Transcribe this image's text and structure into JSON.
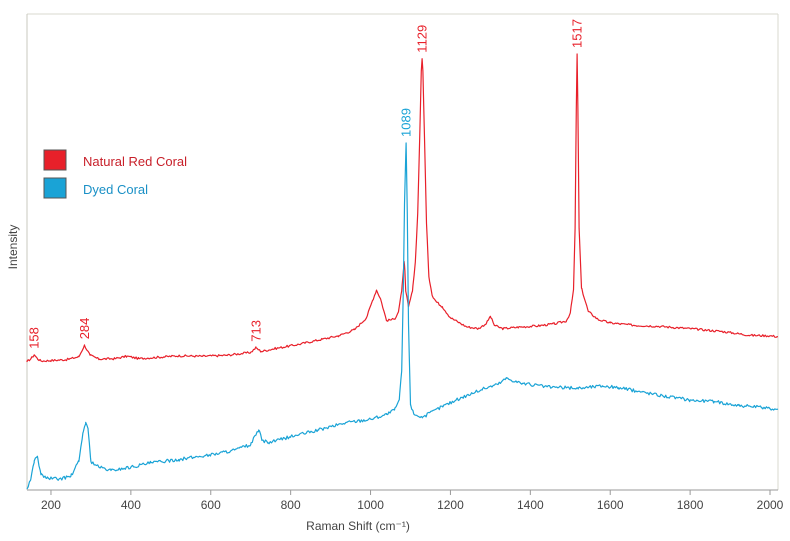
{
  "chart_data": {
    "type": "line",
    "xlabel": "Raman Shift (cm⁻¹)",
    "ylabel": "Intensity",
    "xlim": [
      140,
      2020
    ],
    "ylim": [
      0,
      100
    ],
    "x_ticks": [
      200,
      400,
      600,
      800,
      1000,
      1200,
      1400,
      1600,
      1800,
      2000
    ],
    "grid": false,
    "y_tick_labels": false,
    "legend": "left",
    "series": [
      {
        "name": "Natural Red Coral",
        "color": "#e8202a",
        "points": [
          [
            140,
            27.0
          ],
          [
            150,
            27.6
          ],
          [
            158,
            28.4
          ],
          [
            166,
            27.6
          ],
          [
            175,
            27.1
          ],
          [
            200,
            27.2
          ],
          [
            240,
            27.4
          ],
          [
            270,
            28.0
          ],
          [
            284,
            30.4
          ],
          [
            298,
            28.3
          ],
          [
            320,
            27.5
          ],
          [
            360,
            27.6
          ],
          [
            390,
            28.1
          ],
          [
            420,
            27.6
          ],
          [
            470,
            27.9
          ],
          [
            520,
            28.2
          ],
          [
            580,
            28.1
          ],
          [
            640,
            28.3
          ],
          [
            700,
            28.9
          ],
          [
            713,
            29.9
          ],
          [
            726,
            29.1
          ],
          [
            760,
            29.7
          ],
          [
            820,
            30.6
          ],
          [
            880,
            31.7
          ],
          [
            920,
            32.4
          ],
          [
            960,
            33.7
          ],
          [
            990,
            36.2
          ],
          [
            1005,
            39.8
          ],
          [
            1015,
            42.0
          ],
          [
            1025,
            40.2
          ],
          [
            1040,
            35.6
          ],
          [
            1060,
            35.9
          ],
          [
            1070,
            37.5
          ],
          [
            1078,
            41.8
          ],
          [
            1084,
            48.0
          ],
          [
            1086,
            46.0
          ],
          [
            1088,
            41.8
          ],
          [
            1095,
            38.5
          ],
          [
            1105,
            41.8
          ],
          [
            1112,
            47.8
          ],
          [
            1118,
            58.0
          ],
          [
            1123,
            74.0
          ],
          [
            1127,
            88.0
          ],
          [
            1129,
            90.6
          ],
          [
            1131,
            88.0
          ],
          [
            1135,
            74.0
          ],
          [
            1140,
            56.0
          ],
          [
            1146,
            44.8
          ],
          [
            1155,
            40.7
          ],
          [
            1165,
            39.5
          ],
          [
            1180,
            38.5
          ],
          [
            1200,
            36.2
          ],
          [
            1240,
            34.3
          ],
          [
            1270,
            33.9
          ],
          [
            1290,
            35.0
          ],
          [
            1300,
            36.5
          ],
          [
            1310,
            34.6
          ],
          [
            1330,
            33.9
          ],
          [
            1370,
            34.2
          ],
          [
            1420,
            34.5
          ],
          [
            1460,
            34.9
          ],
          [
            1490,
            35.5
          ],
          [
            1500,
            37.2
          ],
          [
            1508,
            42.0
          ],
          [
            1512,
            55.0
          ],
          [
            1515,
            80.0
          ],
          [
            1517,
            91.6
          ],
          [
            1519,
            80.0
          ],
          [
            1522,
            55.0
          ],
          [
            1528,
            42.4
          ],
          [
            1545,
            37.5
          ],
          [
            1570,
            35.8
          ],
          [
            1600,
            35.1
          ],
          [
            1660,
            34.6
          ],
          [
            1720,
            34.4
          ],
          [
            1800,
            33.9
          ],
          [
            1880,
            33.3
          ],
          [
            1950,
            32.5
          ],
          [
            2000,
            32.4
          ],
          [
            2020,
            32.2
          ]
        ]
      },
      {
        "name": "Dyed Coral",
        "color": "#1aa3d6",
        "points": [
          [
            140,
            0.2
          ],
          [
            150,
            2.5
          ],
          [
            158,
            6.1
          ],
          [
            166,
            7.1
          ],
          [
            175,
            3.2
          ],
          [
            190,
            2.5
          ],
          [
            220,
            2.3
          ],
          [
            250,
            2.9
          ],
          [
            270,
            6.0
          ],
          [
            280,
            12.0
          ],
          [
            287,
            14.2
          ],
          [
            293,
            12.6
          ],
          [
            300,
            6.0
          ],
          [
            320,
            4.8
          ],
          [
            350,
            4.1
          ],
          [
            400,
            4.8
          ],
          [
            450,
            5.7
          ],
          [
            520,
            6.4
          ],
          [
            600,
            7.4
          ],
          [
            660,
            8.4
          ],
          [
            700,
            9.5
          ],
          [
            712,
            11.5
          ],
          [
            720,
            12.6
          ],
          [
            728,
            10.5
          ],
          [
            745,
            9.9
          ],
          [
            800,
            11.2
          ],
          [
            870,
            12.6
          ],
          [
            940,
            14.2
          ],
          [
            1000,
            14.9
          ],
          [
            1040,
            15.9
          ],
          [
            1060,
            16.8
          ],
          [
            1072,
            19.0
          ],
          [
            1078,
            25.0
          ],
          [
            1082,
            42.0
          ],
          [
            1085,
            60.0
          ],
          [
            1089,
            72.9
          ],
          [
            1092,
            58.0
          ],
          [
            1095,
            35.0
          ],
          [
            1100,
            18.0
          ],
          [
            1108,
            16.0
          ],
          [
            1130,
            15.3
          ],
          [
            1180,
            17.6
          ],
          [
            1230,
            19.5
          ],
          [
            1280,
            21.2
          ],
          [
            1320,
            22.3
          ],
          [
            1340,
            23.5
          ],
          [
            1380,
            22.4
          ],
          [
            1450,
            21.6
          ],
          [
            1520,
            21.4
          ],
          [
            1580,
            21.9
          ],
          [
            1620,
            21.5
          ],
          [
            1680,
            20.6
          ],
          [
            1740,
            19.7
          ],
          [
            1800,
            18.9
          ],
          [
            1860,
            18.6
          ],
          [
            1920,
            17.8
          ],
          [
            1980,
            17.3
          ],
          [
            2020,
            17.0
          ]
        ]
      }
    ],
    "annotations": [
      {
        "text": "158",
        "x": 158,
        "series": 0
      },
      {
        "text": "284",
        "x": 284,
        "series": 0
      },
      {
        "text": "713",
        "x": 713,
        "series": 0
      },
      {
        "text": "1089",
        "x": 1089,
        "series": 1
      },
      {
        "text": "1129",
        "x": 1129,
        "series": 0
      },
      {
        "text": "1517",
        "x": 1517,
        "series": 0
      }
    ]
  }
}
